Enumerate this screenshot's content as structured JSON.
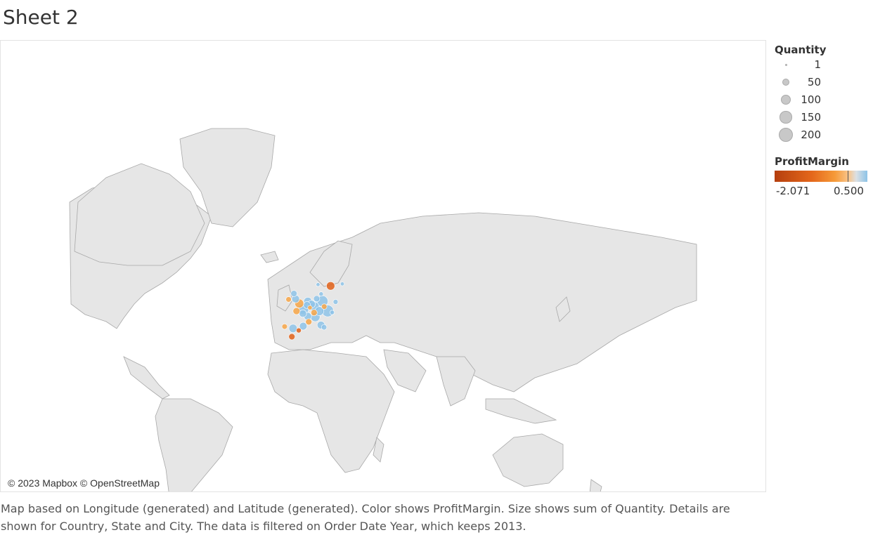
{
  "sheet_title": "Sheet 2",
  "attribution": "© 2023 Mapbox © OpenStreetMap",
  "legend": {
    "quantity_title": "Quantity",
    "sizes": [
      {
        "label": "1",
        "value": 1
      },
      {
        "label": "50",
        "value": 50
      },
      {
        "label": "100",
        "value": 100
      },
      {
        "label": "150",
        "value": 150
      },
      {
        "label": "200",
        "value": 200
      }
    ],
    "profit_title": "ProfitMargin",
    "profit_min": "-2.071",
    "profit_max": "0.500"
  },
  "caption": "Map based on Longitude (generated) and Latitude (generated).  Color shows ProfitMargin.  Size shows sum of Quantity.  Details are shown for Country, State and City. The data is filtered on Order Date Year, which keeps 2013.",
  "colors": {
    "land": "#e6e6e6",
    "border": "#9a9a9a",
    "profit_high": "#8ec3e8",
    "profit_mid": "#f6a446",
    "profit_low": "#e06018",
    "neutral": "#c9c9c9"
  },
  "chart_data": {
    "type": "scatter",
    "map": "world",
    "region_shown": "Europe",
    "points": [
      {
        "lon": -4.4,
        "lat": 36.7,
        "quantity": 40,
        "profit_margin": -1.8
      },
      {
        "lon": -3.7,
        "lat": 40.4,
        "quantity": 70,
        "profit_margin": 0.3
      },
      {
        "lon": -8.6,
        "lat": 41.2,
        "quantity": 30,
        "profit_margin": -0.4
      },
      {
        "lon": 2.2,
        "lat": 41.4,
        "quantity": 60,
        "profit_margin": 0.4
      },
      {
        "lon": -0.4,
        "lat": 39.5,
        "quantity": 25,
        "profit_margin": -1.2
      },
      {
        "lon": -1.7,
        "lat": 48.1,
        "quantity": 50,
        "profit_margin": -0.5
      },
      {
        "lon": 2.3,
        "lat": 48.9,
        "quantity": 110,
        "profit_margin": 0.45
      },
      {
        "lon": 4.8,
        "lat": 45.8,
        "quantity": 60,
        "profit_margin": 0.35
      },
      {
        "lon": 5.4,
        "lat": 43.3,
        "quantity": 40,
        "profit_margin": -0.3
      },
      {
        "lon": -0.1,
        "lat": 51.5,
        "quantity": 80,
        "profit_margin": -0.2
      },
      {
        "lon": -2.2,
        "lat": 53.5,
        "quantity": 60,
        "profit_margin": 0.4
      },
      {
        "lon": -3.2,
        "lat": 55.9,
        "quantity": 40,
        "profit_margin": 0.38
      },
      {
        "lon": -6.3,
        "lat": 53.3,
        "quantity": 30,
        "profit_margin": -0.5
      },
      {
        "lon": 4.9,
        "lat": 52.4,
        "quantity": 70,
        "profit_margin": 0.45
      },
      {
        "lon": 4.4,
        "lat": 50.8,
        "quantity": 50,
        "profit_margin": 0.42
      },
      {
        "lon": 8.7,
        "lat": 50.1,
        "quantity": 90,
        "profit_margin": 0.48
      },
      {
        "lon": 13.4,
        "lat": 52.5,
        "quantity": 120,
        "profit_margin": 0.2
      },
      {
        "lon": 10.0,
        "lat": 53.6,
        "quantity": 40,
        "profit_margin": 0.35
      },
      {
        "lon": 11.6,
        "lat": 48.1,
        "quantity": 80,
        "profit_margin": 0.3
      },
      {
        "lon": 16.4,
        "lat": 48.2,
        "quantity": 140,
        "profit_margin": 0.48
      },
      {
        "lon": 9.2,
        "lat": 45.5,
        "quantity": 90,
        "profit_margin": 0.4
      },
      {
        "lon": 12.5,
        "lat": 41.9,
        "quantity": 60,
        "profit_margin": 0.15
      },
      {
        "lon": 14.3,
        "lat": 40.9,
        "quantity": 30,
        "profit_margin": 0.4
      },
      {
        "lon": 8.5,
        "lat": 47.4,
        "quantity": 40,
        "profit_margin": -0.6
      },
      {
        "lon": 18.1,
        "lat": 59.3,
        "quantity": 70,
        "profit_margin": -2.0
      },
      {
        "lon": 12.6,
        "lat": 55.7,
        "quantity": 20,
        "profit_margin": 0.4
      },
      {
        "lon": 10.8,
        "lat": 59.9,
        "quantity": 15,
        "profit_margin": 0.45
      },
      {
        "lon": 24.9,
        "lat": 60.2,
        "quantity": 15,
        "profit_margin": 0.45
      },
      {
        "lon": 21.0,
        "lat": 52.2,
        "quantity": 25,
        "profit_margin": 0.4
      },
      {
        "lon": 14.4,
        "lat": 50.1,
        "quantity": 30,
        "profit_margin": -0.8
      },
      {
        "lon": 19.0,
        "lat": 47.5,
        "quantity": 20,
        "profit_margin": 0.4
      },
      {
        "lon": 2.0,
        "lat": 47.0,
        "quantity": 55,
        "profit_margin": 0.42
      },
      {
        "lon": 6.1,
        "lat": 49.6,
        "quantity": 20,
        "profit_margin": -0.9
      },
      {
        "lon": 7.0,
        "lat": 51.2,
        "quantity": 60,
        "profit_margin": 0.45
      }
    ]
  }
}
